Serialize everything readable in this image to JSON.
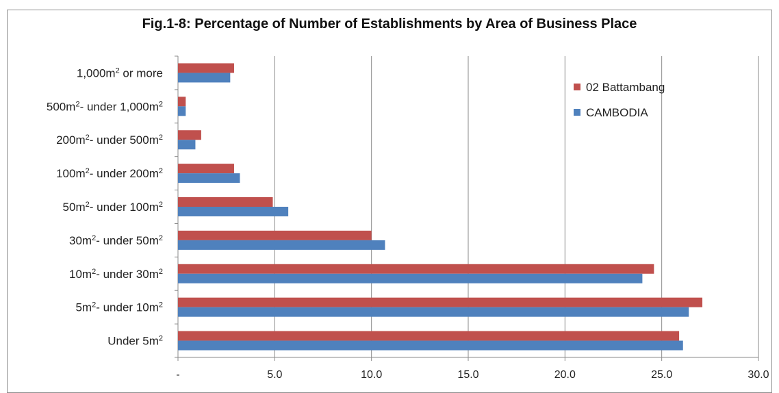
{
  "chart_data": {
    "type": "bar",
    "orientation": "horizontal",
    "title": "Fig.1-8: Percentage of Number of Establishments by Area of Business Place",
    "categories": [
      [
        "1,000",
        "m",
        "2",
        " or more"
      ],
      [
        "500",
        "m",
        "2",
        "- under 1,000",
        "m",
        "2"
      ],
      [
        "200",
        "m",
        "2",
        "- under 500",
        "m",
        "2"
      ],
      [
        "100",
        "m",
        "2",
        "- under 200",
        "m",
        "2"
      ],
      [
        "50",
        "m",
        "2",
        "- under 100",
        "m",
        "2"
      ],
      [
        "30",
        "m",
        "2",
        "- under 50",
        "m",
        "2"
      ],
      [
        "10",
        "m",
        "2",
        "- under 30",
        "m",
        "2"
      ],
      [
        "5",
        "m",
        "2",
        "- under 10",
        "m",
        "2"
      ],
      [
        "Under 5",
        "m",
        "2"
      ]
    ],
    "category_text": [
      "1,000m2 or more",
      "500m2- under 1,000m2",
      "200m2- under 500m2",
      "100m2- under 200m2",
      "50m2- under 100m2",
      "30m2- under 50m2",
      "10m2- under 30m2",
      "5m2- under 10m2",
      "Under 5m2"
    ],
    "series": [
      {
        "name": "02 Battambang",
        "color": "#c0504d",
        "values": [
          2.9,
          0.4,
          1.2,
          2.9,
          4.9,
          10.0,
          24.6,
          27.1,
          25.9
        ]
      },
      {
        "name": "CAMBODIA",
        "color": "#4f81bd",
        "values": [
          2.7,
          0.4,
          0.9,
          3.2,
          5.7,
          10.7,
          24.0,
          26.4,
          26.1
        ]
      }
    ],
    "x_ticks": [
      "-",
      "5.0",
      "10.0",
      "15.0",
      "20.0",
      "25.0",
      "30.0"
    ],
    "xlim": [
      0,
      30
    ],
    "grid": true,
    "legend_position": "top-right"
  }
}
